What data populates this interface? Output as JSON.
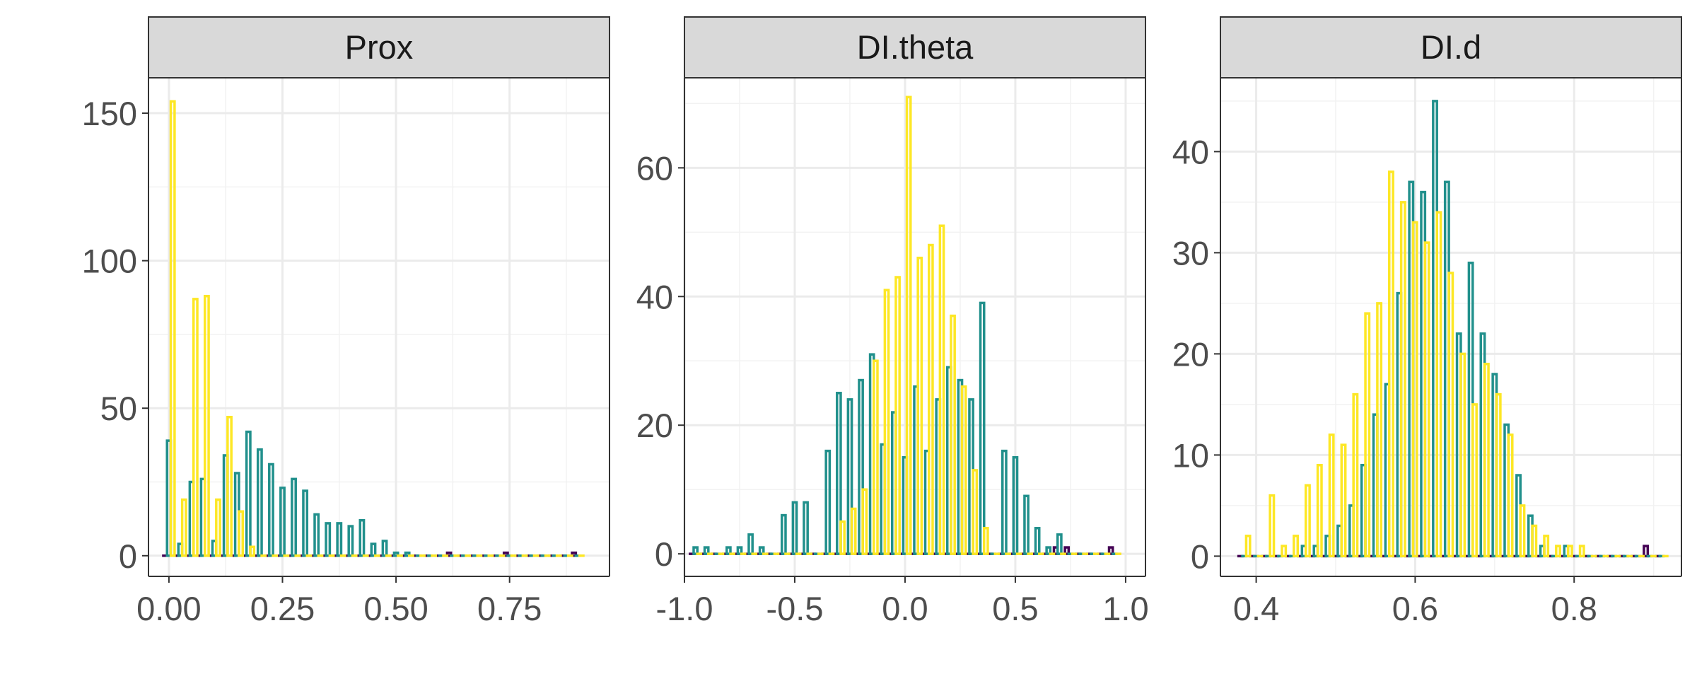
{
  "chart_data": [
    {
      "type": "bar",
      "title": "Prox",
      "xlabel": "",
      "ylabel": "",
      "xlim": [
        -0.045,
        0.97
      ],
      "ylim": [
        -7,
        162
      ],
      "x_ticks": [
        0,
        0.25,
        0.5,
        0.75
      ],
      "x_tick_labels": [
        "0.00",
        "0.25",
        "0.50",
        "0.75"
      ],
      "y_ticks": [
        0,
        50,
        100,
        150
      ],
      "y_tick_labels": [
        "0",
        "50",
        "100",
        "150"
      ],
      "grid": true,
      "bar_offsets": [
        -0.0083,
        0,
        0.0083
      ],
      "bar_width": 0.0083,
      "series": [
        {
          "name": "",
          "color": "#440154",
          "x": [
            0.0,
            0.025,
            0.05,
            0.075,
            0.1,
            0.125,
            0.15,
            0.175,
            0.2,
            0.225,
            0.25,
            0.275,
            0.3,
            0.325,
            0.35,
            0.375,
            0.4,
            0.425,
            0.45,
            0.475,
            0.5,
            0.525,
            0.55,
            0.575,
            0.6,
            0.625,
            0.65,
            0.675,
            0.7,
            0.725,
            0.75,
            0.775,
            0.8,
            0.825,
            0.85,
            0.875,
            0.9
          ],
          "values": [
            0,
            0,
            0,
            0,
            0,
            0,
            0,
            0,
            0,
            0,
            0,
            0,
            0,
            0,
            0,
            0,
            0,
            0,
            0,
            0,
            0,
            0,
            0,
            0,
            0,
            1,
            0,
            0,
            0,
            0,
            1,
            0,
            0,
            0,
            0,
            0,
            1
          ]
        },
        {
          "name": "",
          "color": "#21908C",
          "x": [
            0.0,
            0.025,
            0.05,
            0.075,
            0.1,
            0.125,
            0.15,
            0.175,
            0.2,
            0.225,
            0.25,
            0.275,
            0.3,
            0.325,
            0.35,
            0.375,
            0.4,
            0.425,
            0.45,
            0.475,
            0.5,
            0.525,
            0.55,
            0.575,
            0.6,
            0.625,
            0.65,
            0.675,
            0.7,
            0.725,
            0.75,
            0.775,
            0.8,
            0.825,
            0.85,
            0.875,
            0.9
          ],
          "values": [
            39,
            4,
            25,
            26,
            5,
            34,
            28,
            42,
            36,
            31,
            23,
            26,
            22,
            14,
            11,
            11,
            10,
            12,
            4,
            5,
            1,
            1,
            0,
            0,
            0,
            0,
            0,
            0,
            0,
            0,
            0,
            0,
            0,
            0,
            0,
            0,
            0
          ]
        },
        {
          "name": "",
          "color": "#FDE725",
          "x": [
            0.0,
            0.025,
            0.05,
            0.075,
            0.1,
            0.125,
            0.15,
            0.175,
            0.2,
            0.225,
            0.25,
            0.275,
            0.3,
            0.325,
            0.35,
            0.375,
            0.4,
            0.425,
            0.45,
            0.475,
            0.5,
            0.525,
            0.55,
            0.575,
            0.6,
            0.625,
            0.65,
            0.675,
            0.7,
            0.725,
            0.75,
            0.775,
            0.8,
            0.825,
            0.85,
            0.875,
            0.9
          ],
          "values": [
            154,
            19,
            87,
            88,
            19,
            47,
            15,
            3,
            0,
            0,
            0,
            0,
            0,
            0,
            0,
            0,
            0,
            0,
            0,
            0,
            0,
            0,
            0,
            0,
            0,
            0,
            0,
            0,
            0,
            0,
            0,
            0,
            0,
            0,
            0,
            0,
            0
          ]
        }
      ]
    },
    {
      "type": "bar",
      "title": "DI.theta",
      "xlabel": "",
      "ylabel": "",
      "xlim": [
        -1.0,
        1.09
      ],
      "ylim": [
        -3.5,
        74
      ],
      "x_ticks": [
        -1,
        -0.5,
        0,
        0.5,
        1
      ],
      "x_tick_labels": [
        "-1.0",
        "-0.5",
        "0.0",
        "0.5",
        "1.0"
      ],
      "y_ticks": [
        0,
        20,
        40,
        60
      ],
      "y_tick_labels": [
        "0",
        "20",
        "40",
        "60"
      ],
      "grid": true,
      "bar_offsets": [
        -0.0167,
        0,
        0.0167
      ],
      "bar_width": 0.0167,
      "series": [
        {
          "name": "",
          "color": "#440154",
          "x": [
            -0.95,
            -0.9,
            -0.85,
            -0.8,
            -0.75,
            -0.7,
            -0.65,
            -0.6,
            -0.55,
            -0.5,
            -0.45,
            -0.4,
            -0.35,
            -0.3,
            -0.25,
            -0.2,
            -0.15,
            -0.1,
            -0.05,
            0.0,
            0.05,
            0.1,
            0.15,
            0.2,
            0.25,
            0.3,
            0.35,
            0.4,
            0.45,
            0.5,
            0.55,
            0.6,
            0.65,
            0.7,
            0.75,
            0.8,
            0.85,
            0.9,
            0.95
          ],
          "values": [
            0,
            0,
            0,
            0,
            0,
            0,
            0,
            0,
            0,
            0,
            0,
            0,
            0,
            0,
            0,
            0,
            0,
            0,
            0,
            0,
            0,
            0,
            0,
            0,
            0,
            0,
            0,
            0,
            0,
            0,
            0,
            0,
            0,
            1,
            1,
            0,
            0,
            0,
            1
          ]
        },
        {
          "name": "",
          "color": "#21908C",
          "x": [
            -0.95,
            -0.9,
            -0.85,
            -0.8,
            -0.75,
            -0.7,
            -0.65,
            -0.6,
            -0.55,
            -0.5,
            -0.45,
            -0.4,
            -0.35,
            -0.3,
            -0.25,
            -0.2,
            -0.15,
            -0.1,
            -0.05,
            0.0,
            0.05,
            0.1,
            0.15,
            0.2,
            0.25,
            0.3,
            0.35,
            0.4,
            0.45,
            0.5,
            0.55,
            0.6,
            0.65,
            0.7,
            0.75,
            0.8,
            0.85,
            0.9,
            0.95
          ],
          "values": [
            1,
            1,
            0,
            1,
            1,
            3,
            1,
            0,
            6,
            8,
            8,
            0,
            16,
            25,
            24,
            27,
            31,
            17,
            22,
            15,
            26,
            16,
            24,
            29,
            27,
            24,
            39,
            0,
            16,
            15,
            9,
            4,
            1,
            3,
            0,
            0,
            0,
            0,
            0
          ]
        },
        {
          "name": "",
          "color": "#FDE725",
          "x": [
            -0.95,
            -0.9,
            -0.85,
            -0.8,
            -0.75,
            -0.7,
            -0.65,
            -0.6,
            -0.55,
            -0.5,
            -0.45,
            -0.4,
            -0.35,
            -0.3,
            -0.25,
            -0.2,
            -0.15,
            -0.1,
            -0.05,
            0.0,
            0.05,
            0.1,
            0.15,
            0.2,
            0.25,
            0.3,
            0.35,
            0.4,
            0.45,
            0.5,
            0.55,
            0.6,
            0.65,
            0.7,
            0.75,
            0.8,
            0.85,
            0.9,
            0.95
          ],
          "values": [
            0,
            0,
            0,
            0,
            0,
            0,
            0,
            0,
            0,
            0,
            0,
            0,
            0,
            5,
            7,
            10,
            30,
            41,
            43,
            71,
            46,
            48,
            51,
            37,
            26,
            13,
            4,
            0,
            0,
            0,
            0,
            0,
            0,
            0,
            0,
            0,
            0,
            0,
            0
          ]
        }
      ]
    },
    {
      "type": "bar",
      "title": "DI.d",
      "xlabel": "",
      "ylabel": "",
      "xlim": [
        0.355,
        0.935
      ],
      "ylim": [
        -2,
        47.3
      ],
      "x_ticks": [
        0.4,
        0.6,
        0.8
      ],
      "x_tick_labels": [
        "0.4",
        "0.6",
        "0.8"
      ],
      "y_ticks": [
        0,
        10,
        20,
        30,
        40
      ],
      "y_tick_labels": [
        "0",
        "10",
        "20",
        "30",
        "40"
      ],
      "grid": true,
      "bar_offsets": [
        -0.0048,
        0,
        0.0048
      ],
      "bar_width": 0.0048,
      "series": [
        {
          "name": "",
          "color": "#440154",
          "x": [
            0.385,
            0.4,
            0.415,
            0.43,
            0.445,
            0.46,
            0.475,
            0.49,
            0.505,
            0.52,
            0.535,
            0.55,
            0.565,
            0.58,
            0.595,
            0.61,
            0.625,
            0.64,
            0.655,
            0.67,
            0.685,
            0.7,
            0.715,
            0.73,
            0.745,
            0.76,
            0.775,
            0.79,
            0.805,
            0.82,
            0.835,
            0.85,
            0.865,
            0.88,
            0.895,
            0.91
          ],
          "values": [
            0,
            0,
            0,
            0,
            0,
            0,
            0,
            0,
            0,
            0,
            0,
            0,
            0,
            0,
            0,
            0,
            0,
            0,
            0,
            0,
            0,
            0,
            0,
            0,
            0,
            0,
            0,
            0,
            0,
            0,
            0,
            0,
            0,
            0,
            1,
            0
          ]
        },
        {
          "name": "",
          "color": "#21908C",
          "x": [
            0.385,
            0.4,
            0.415,
            0.43,
            0.445,
            0.46,
            0.475,
            0.49,
            0.505,
            0.52,
            0.535,
            0.55,
            0.565,
            0.58,
            0.595,
            0.61,
            0.625,
            0.64,
            0.655,
            0.67,
            0.685,
            0.7,
            0.715,
            0.73,
            0.745,
            0.76,
            0.775,
            0.79,
            0.805,
            0.82,
            0.835,
            0.85,
            0.865,
            0.88,
            0.895,
            0.91
          ],
          "values": [
            0,
            0,
            0,
            0,
            0,
            1,
            1,
            2,
            3,
            5,
            9,
            14,
            17,
            26,
            37,
            36,
            45,
            37,
            22,
            29,
            22,
            18,
            13,
            8,
            4,
            1,
            0,
            1,
            0,
            0,
            0,
            0,
            0,
            0,
            0,
            0
          ]
        },
        {
          "name": "",
          "color": "#FDE725",
          "x": [
            0.385,
            0.4,
            0.415,
            0.43,
            0.445,
            0.46,
            0.475,
            0.49,
            0.505,
            0.52,
            0.535,
            0.55,
            0.565,
            0.58,
            0.595,
            0.61,
            0.625,
            0.64,
            0.655,
            0.67,
            0.685,
            0.7,
            0.715,
            0.73,
            0.745,
            0.76,
            0.775,
            0.79,
            0.805,
            0.82,
            0.835,
            0.85,
            0.865,
            0.88,
            0.895,
            0.91
          ],
          "values": [
            2,
            0,
            6,
            1,
            2,
            7,
            9,
            12,
            11,
            16,
            24,
            25,
            38,
            35,
            33,
            31,
            34,
            28,
            20,
            15,
            19,
            16,
            12,
            5,
            3,
            2,
            1,
            1,
            1,
            0,
            0,
            0,
            0,
            0,
            0,
            0
          ]
        }
      ]
    }
  ]
}
